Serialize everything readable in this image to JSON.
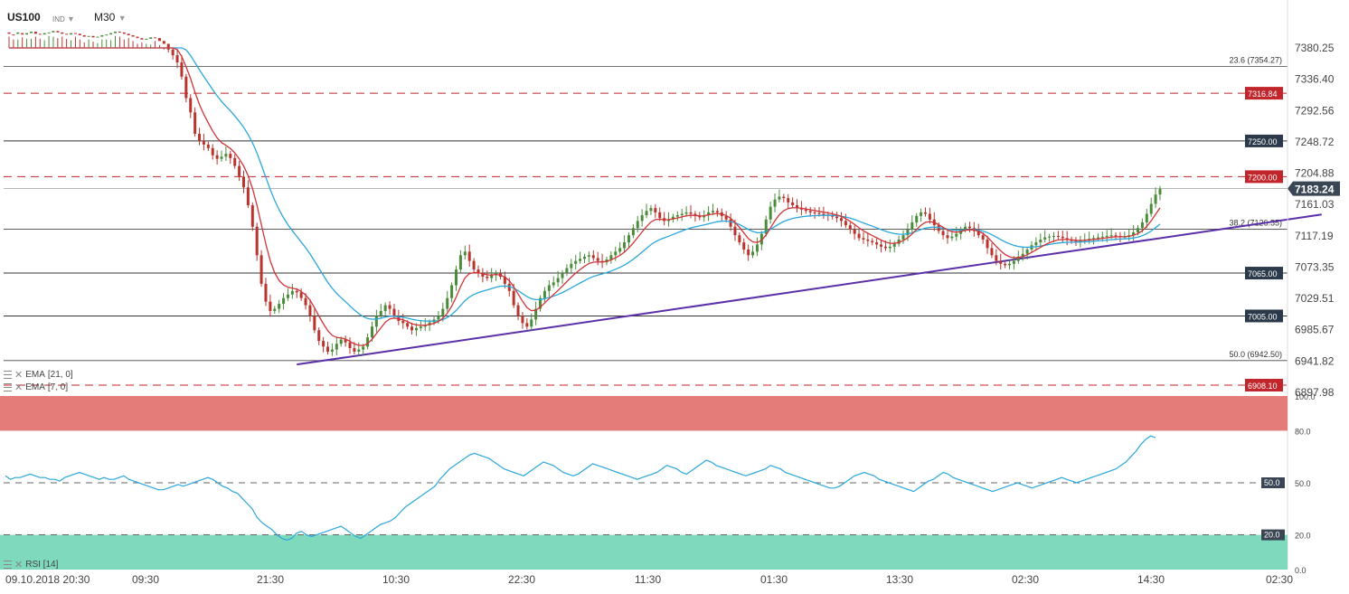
{
  "header": {
    "symbol": "US100",
    "type": "IND",
    "timeframe": "M30"
  },
  "indicators": [
    {
      "name": "EMA",
      "params": "[21,  0]",
      "color": "#2ba7dc"
    },
    {
      "name": "EMA",
      "params": "[7,  0]",
      "color": "#d13438"
    }
  ],
  "rsi": {
    "label": "RSI [14]",
    "color": "#2ba7dc",
    "ticks": [
      "100.0",
      "80.0",
      "50.0",
      "20.0",
      "0.0"
    ],
    "upper_zone": [
      80,
      100
    ],
    "lower_zone": [
      0,
      20
    ],
    "mid": 50,
    "values": [
      54,
      52,
      53,
      53,
      54,
      55,
      54,
      53,
      53,
      52,
      52,
      51,
      53,
      54,
      55,
      56,
      55,
      54,
      53,
      52,
      53,
      52,
      52,
      53,
      54,
      52,
      51,
      50,
      49,
      48,
      47,
      46,
      46,
      47,
      48,
      49,
      48,
      49,
      50,
      51,
      52,
      53,
      52,
      50,
      48,
      47,
      45,
      44,
      41,
      38,
      35,
      30,
      27,
      25,
      23,
      20,
      18,
      17,
      18,
      21,
      22,
      20,
      19,
      20,
      21,
      22,
      23,
      24,
      25,
      23,
      21,
      19,
      18,
      20,
      22,
      24,
      26,
      27,
      28,
      30,
      33,
      36,
      38,
      40,
      42,
      44,
      46,
      48,
      52,
      55,
      58,
      60,
      62,
      64,
      66,
      67,
      66,
      65,
      64,
      62,
      60,
      58,
      57,
      56,
      55,
      54,
      56,
      58,
      60,
      62,
      61,
      60,
      58,
      56,
      55,
      54,
      55,
      57,
      59,
      61,
      60,
      59,
      58,
      57,
      56,
      55,
      54,
      53,
      52,
      53,
      54,
      55,
      56,
      58,
      60,
      59,
      58,
      56,
      55,
      57,
      59,
      61,
      63,
      62,
      60,
      59,
      58,
      57,
      56,
      55,
      54,
      55,
      56,
      57,
      58,
      60,
      59,
      58,
      56,
      55,
      54,
      53,
      52,
      51,
      50,
      49,
      48,
      47,
      47,
      48,
      50,
      52,
      54,
      55,
      56,
      55,
      54,
      52,
      51,
      50,
      49,
      48,
      47,
      46,
      45,
      47,
      49,
      51,
      52,
      54,
      56,
      55,
      53,
      52,
      51,
      50,
      49,
      48,
      47,
      46,
      45,
      46,
      47,
      48,
      49,
      50,
      49,
      48,
      47,
      48,
      49,
      50,
      51,
      52,
      53,
      52,
      51,
      50,
      51,
      52,
      53,
      54,
      55,
      56,
      57,
      58,
      60,
      62,
      65,
      68,
      72,
      75,
      77,
      76
    ]
  },
  "price_axis": {
    "ticks": [
      "7380.25",
      "7336.40",
      "7292.56",
      "7248.72",
      "7204.88",
      "7161.03",
      "7117.19",
      "7073.35",
      "7029.51",
      "6985.67",
      "6941.82",
      "6897.98"
    ],
    "min": 6897.98,
    "max": 7380.25,
    "current": "7183.24",
    "current_value": 7183.24
  },
  "time_axis": {
    "labels": [
      "09.10.2018  20:30",
      "09:30",
      "21:30",
      "10:30",
      "22:30",
      "11:30",
      "01:30",
      "13:30",
      "02:30",
      "14:30",
      "02:30"
    ]
  },
  "levels": {
    "solid": [
      {
        "value": 7250.0,
        "label": "7250.00"
      },
      {
        "value": 7065.0,
        "label": "7065.00"
      },
      {
        "value": 7005.0,
        "label": "7005.00"
      }
    ],
    "dashed_red": [
      {
        "value": 7316.84,
        "label": "7316.84"
      },
      {
        "value": 7200.0,
        "label": "7200.00"
      },
      {
        "value": 6908.1,
        "label": "6908.10"
      }
    ],
    "fib": [
      {
        "value": 7354.27,
        "label": "23.6 (7354.27)"
      },
      {
        "value": 7126.55,
        "label": "38.2 (7126.55)"
      },
      {
        "value": 6942.5,
        "label": "50.0 (6942.50)"
      }
    ]
  },
  "trendline": {
    "start": {
      "bar": 65,
      "value": 6937
    },
    "end": {
      "bar": 272,
      "value": 7126
    },
    "color": "#5b2fa8"
  },
  "chart_data": {
    "type": "candlestick",
    "symbol": "US100",
    "timeframe": "M30",
    "ylim": [
      6897.98,
      7380.25
    ],
    "rsi_ylim": [
      0,
      100
    ],
    "close": [
      7400,
      7398,
      7402,
      7399,
      7401,
      7403,
      7400,
      7399,
      7401,
      7402,
      7404,
      7402,
      7400,
      7399,
      7401,
      7400,
      7398,
      7396,
      7397,
      7395,
      7396,
      7398,
      7399,
      7401,
      7403,
      7402,
      7400,
      7398,
      7396,
      7394,
      7392,
      7393,
      7395,
      7394,
      7390,
      7386,
      7378,
      7370,
      7360,
      7340,
      7310,
      7290,
      7260,
      7250,
      7245,
      7240,
      7230,
      7225,
      7228,
      7232,
      7226,
      7215,
      7200,
      7185,
      7160,
      7130,
      7090,
      7050,
      7025,
      7012,
      7015,
      7022,
      7030,
      7035,
      7040,
      7038,
      7030,
      7020,
      7005,
      6985,
      6970,
      6962,
      6955,
      6958,
      6966,
      6972,
      6968,
      6960,
      6955,
      6958,
      6962,
      6975,
      6990,
      7005,
      7012,
      7020,
      7015,
      7005,
      6998,
      6995,
      6990,
      6985,
      6988,
      6990,
      6992,
      6996,
      7000,
      7005,
      7015,
      7030,
      7048,
      7070,
      7090,
      7095,
      7082,
      7070,
      7065,
      7060,
      7058,
      7062,
      7065,
      7060,
      7050,
      7040,
      7020,
      7005,
      6995,
      6990,
      7000,
      7015,
      7030,
      7040,
      7048,
      7052,
      7058,
      7065,
      7072,
      7078,
      7082,
      7085,
      7088,
      7090,
      7086,
      7082,
      7080,
      7084,
      7090,
      7095,
      7100,
      7108,
      7118,
      7128,
      7138,
      7146,
      7152,
      7156,
      7150,
      7142,
      7138,
      7140,
      7144,
      7146,
      7148,
      7150,
      7148,
      7145,
      7143,
      7146,
      7150,
      7152,
      7150,
      7145,
      7140,
      7130,
      7118,
      7108,
      7098,
      7090,
      7095,
      7105,
      7120,
      7140,
      7158,
      7168,
      7172,
      7170,
      7164,
      7160,
      7156,
      7154,
      7152,
      7150,
      7149,
      7148,
      7147,
      7146,
      7144,
      7142,
      7138,
      7132,
      7126,
      7120,
      7114,
      7112,
      7110,
      7108,
      7105,
      7102,
      7100,
      7102,
      7106,
      7112,
      7118,
      7126,
      7136,
      7145,
      7150,
      7148,
      7140,
      7132,
      7124,
      7118,
      7114,
      7116,
      7120,
      7126,
      7130,
      7128,
      7124,
      7118,
      7112,
      7100,
      7090,
      7082,
      7078,
      7076,
      7078,
      7082,
      7088,
      7092,
      7098,
      7104,
      7108,
      7112,
      7115,
      7116,
      7117,
      7116,
      7114,
      7112,
      7110,
      7109,
      7110,
      7112,
      7113,
      7114,
      7115,
      7116,
      7117,
      7118,
      7117,
      7116,
      7116,
      7118,
      7122,
      7128,
      7136,
      7148,
      7162,
      7175,
      7183
    ],
    "open": [
      7402,
      7399,
      7400,
      7401,
      7399,
      7401,
      7403,
      7400,
      7399,
      7401,
      7402,
      7404,
      7402,
      7400,
      7399,
      7401,
      7400,
      7398,
      7396,
      7397,
      7395,
      7396,
      7398,
      7399,
      7401,
      7403,
      7402,
      7400,
      7398,
      7396,
      7394,
      7392,
      7393,
      7395,
      7394,
      7390,
      7386,
      7378,
      7370,
      7360,
      7340,
      7310,
      7290,
      7260,
      7250,
      7245,
      7240,
      7230,
      7225,
      7228,
      7232,
      7226,
      7215,
      7200,
      7185,
      7160,
      7130,
      7090,
      7050,
      7025,
      7012,
      7015,
      7022,
      7030,
      7035,
      7040,
      7038,
      7030,
      7020,
      7005,
      6985,
      6970,
      6962,
      6955,
      6958,
      6966,
      6972,
      6968,
      6960,
      6955,
      6958,
      6962,
      6975,
      6990,
      7005,
      7012,
      7020,
      7015,
      7005,
      6998,
      6995,
      6990,
      6985,
      6988,
      6990,
      6992,
      6996,
      7000,
      7005,
      7015,
      7030,
      7048,
      7070,
      7090,
      7095,
      7082,
      7070,
      7065,
      7060,
      7058,
      7062,
      7065,
      7060,
      7050,
      7040,
      7020,
      7005,
      6995,
      6990,
      7000,
      7015,
      7030,
      7040,
      7048,
      7052,
      7058,
      7065,
      7072,
      7078,
      7082,
      7085,
      7088,
      7090,
      7086,
      7082,
      7080,
      7084,
      7090,
      7095,
      7100,
      7108,
      7118,
      7128,
      7138,
      7146,
      7152,
      7156,
      7150,
      7142,
      7138,
      7140,
      7144,
      7146,
      7148,
      7150,
      7148,
      7145,
      7143,
      7146,
      7150,
      7152,
      7150,
      7145,
      7140,
      7130,
      7118,
      7108,
      7098,
      7090,
      7095,
      7105,
      7120,
      7140,
      7158,
      7168,
      7172,
      7170,
      7164,
      7160,
      7156,
      7154,
      7152,
      7150,
      7149,
      7148,
      7147,
      7146,
      7144,
      7142,
      7138,
      7132,
      7126,
      7120,
      7114,
      7112,
      7110,
      7108,
      7105,
      7102,
      7100,
      7102,
      7106,
      7112,
      7118,
      7126,
      7136,
      7145,
      7150,
      7148,
      7140,
      7132,
      7124,
      7118,
      7114,
      7116,
      7120,
      7126,
      7130,
      7128,
      7124,
      7118,
      7112,
      7100,
      7090,
      7082,
      7078,
      7076,
      7078,
      7082,
      7088,
      7092,
      7098,
      7104,
      7108,
      7112,
      7115,
      7116,
      7117,
      7116,
      7114,
      7112,
      7110,
      7109,
      7110,
      7112,
      7113,
      7114,
      7115,
      7116,
      7117,
      7118,
      7117,
      7116,
      7116,
      7118,
      7122,
      7128,
      7136,
      7148,
      7162,
      7175
    ],
    "ema21_label": "EMA [21,  0]",
    "ema7_label": "EMA [7,  0]",
    "rsi_label": "RSI [14]"
  }
}
